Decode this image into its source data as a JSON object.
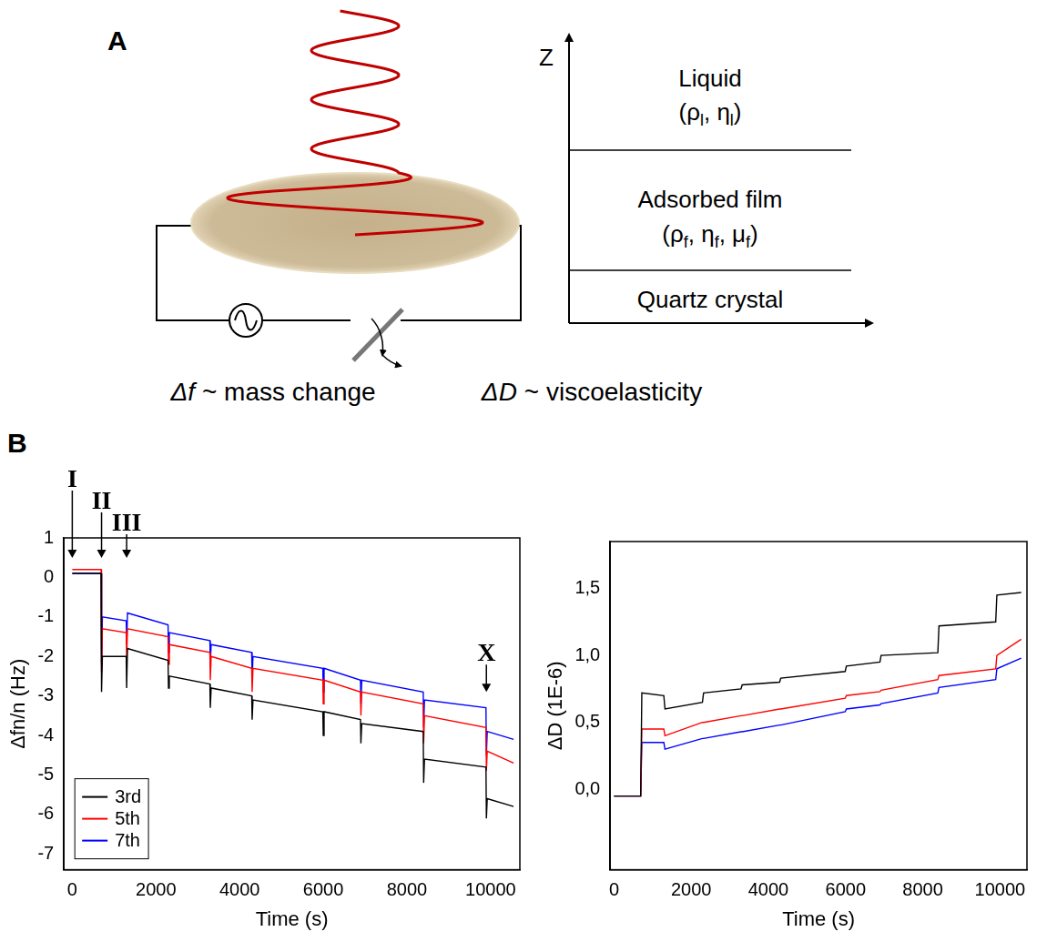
{
  "panel_labels": [
    "A",
    "B"
  ],
  "diagram": {
    "z_axis": "Z",
    "layers": [
      {
        "name": "Liquid",
        "properties": [
          "(",
          [
            "ρ",
            "l"
          ],
          ", ",
          [
            "η",
            "l"
          ],
          ")"
        ]
      },
      {
        "name": "Adsorbed film",
        "properties": [
          "(",
          [
            "ρ",
            "f"
          ],
          ", ",
          [
            "η",
            "f"
          ],
          ", ",
          [
            "μ",
            "f"
          ],
          ")"
        ]
      },
      {
        "name": "Quartz crystal",
        "properties": []
      }
    ],
    "captions": [
      {
        "symbol": "Δf",
        "text": "~ mass change"
      },
      {
        "symbol": "ΔD",
        "text": "~ viscoelasticity"
      }
    ]
  },
  "chart_data": [
    {
      "type": "line",
      "x_label": "Time (s)",
      "y_label": "Δfn/n (Hz)",
      "x": [
        0,
        690,
        700,
        720,
        1290,
        1300,
        1320,
        2290,
        2300,
        2320,
        3290,
        3300,
        3320,
        4290,
        4300,
        4320,
        5990,
        6000,
        6020,
        6890,
        6900,
        6920,
        8390,
        8400,
        8420,
        9890,
        9900,
        9920,
        10550
      ],
      "series": [
        {
          "name": "3rd",
          "color": "#000000",
          "values": [
            0.1,
            0.1,
            -2.9,
            -2.0,
            -2.0,
            -2.8,
            -1.8,
            -2.1,
            -2.8,
            -2.5,
            -2.7,
            -3.3,
            -2.8,
            -3.0,
            -3.6,
            -3.1,
            -3.4,
            -4.0,
            -3.4,
            -3.6,
            -4.2,
            -3.7,
            -3.9,
            -5.2,
            -4.6,
            -4.8,
            -6.1,
            -5.6,
            -5.8
          ]
        },
        {
          "name": "5th",
          "color": "#ff0000",
          "values": [
            0.2,
            0.2,
            -2.4,
            -1.3,
            -1.4,
            -2.1,
            -1.3,
            -1.5,
            -2.2,
            -1.7,
            -1.9,
            -2.6,
            -2.0,
            -2.3,
            -2.9,
            -2.3,
            -2.6,
            -3.2,
            -2.6,
            -2.9,
            -3.5,
            -2.9,
            -3.2,
            -4.2,
            -3.5,
            -3.8,
            -4.9,
            -4.4,
            -4.7
          ]
        },
        {
          "name": "7th",
          "color": "#0000ff",
          "values": [
            0.1,
            0.1,
            -2.2,
            -1.0,
            -1.1,
            -1.7,
            -0.9,
            -1.2,
            -1.9,
            -1.4,
            -1.6,
            -2.2,
            -1.7,
            -1.9,
            -2.6,
            -2.0,
            -2.3,
            -2.9,
            -2.3,
            -2.6,
            -3.2,
            -2.6,
            -2.9,
            -3.8,
            -3.1,
            -3.3,
            -4.5,
            -3.9,
            -4.1
          ]
        }
      ],
      "xlim": [
        -200,
        10700
      ],
      "xticks": [
        0,
        2000,
        4000,
        6000,
        8000,
        10000
      ],
      "ylim": [
        -7.4,
        1
      ],
      "yticks": [
        -7,
        -6,
        -5,
        -4,
        -3,
        -2,
        -1,
        0,
        1
      ],
      "grid": false,
      "legend": "lower left",
      "annotations": [
        {
          "text": "I",
          "x": 0,
          "y": null
        },
        {
          "text": "II",
          "x": 700,
          "y": null
        },
        {
          "text": "III",
          "x": 1300,
          "y": null
        },
        {
          "text": "X",
          "x": 9900,
          "y": -2.9
        }
      ]
    },
    {
      "type": "line",
      "x_label": "Time (s)",
      "y_label": "ΔD (1E-6)",
      "x": [
        0,
        690,
        720,
        1290,
        1320,
        2290,
        2320,
        3290,
        3320,
        4290,
        4320,
        5990,
        6020,
        6890,
        6920,
        8390,
        8420,
        9890,
        9920,
        10550
      ],
      "series": [
        {
          "name": "3rd",
          "color": "#000000",
          "values": [
            -0.05,
            -0.05,
            0.72,
            0.7,
            0.6,
            0.65,
            0.72,
            0.75,
            0.78,
            0.8,
            0.83,
            0.88,
            0.92,
            0.95,
            1.0,
            1.02,
            1.22,
            1.25,
            1.45,
            1.47
          ]
        },
        {
          "name": "5th",
          "color": "#ff0000",
          "values": [
            -0.05,
            -0.05,
            0.45,
            0.45,
            0.4,
            0.5,
            0.5,
            0.55,
            0.55,
            0.6,
            0.6,
            0.68,
            0.7,
            0.73,
            0.74,
            0.82,
            0.85,
            0.9,
            1.0,
            1.12
          ]
        },
        {
          "name": "7th",
          "color": "#0000ff",
          "values": [
            -0.05,
            -0.05,
            0.35,
            0.35,
            0.3,
            0.38,
            0.38,
            0.43,
            0.43,
            0.48,
            0.48,
            0.58,
            0.6,
            0.63,
            0.64,
            0.72,
            0.76,
            0.82,
            0.9,
            0.98
          ]
        }
      ],
      "xlim": [
        -100,
        10700
      ],
      "xticks": [
        0,
        2000,
        4000,
        6000,
        8000,
        10000
      ],
      "ylim": [
        -0.6,
        1.85
      ],
      "yticks": [
        {
          "value": 0,
          "label": "0,0"
        },
        {
          "value": 0.5,
          "label": "0,5"
        },
        {
          "value": 1,
          "label": "1,0"
        },
        {
          "value": 1.5,
          "label": "1,5"
        }
      ],
      "grid": false
    }
  ]
}
